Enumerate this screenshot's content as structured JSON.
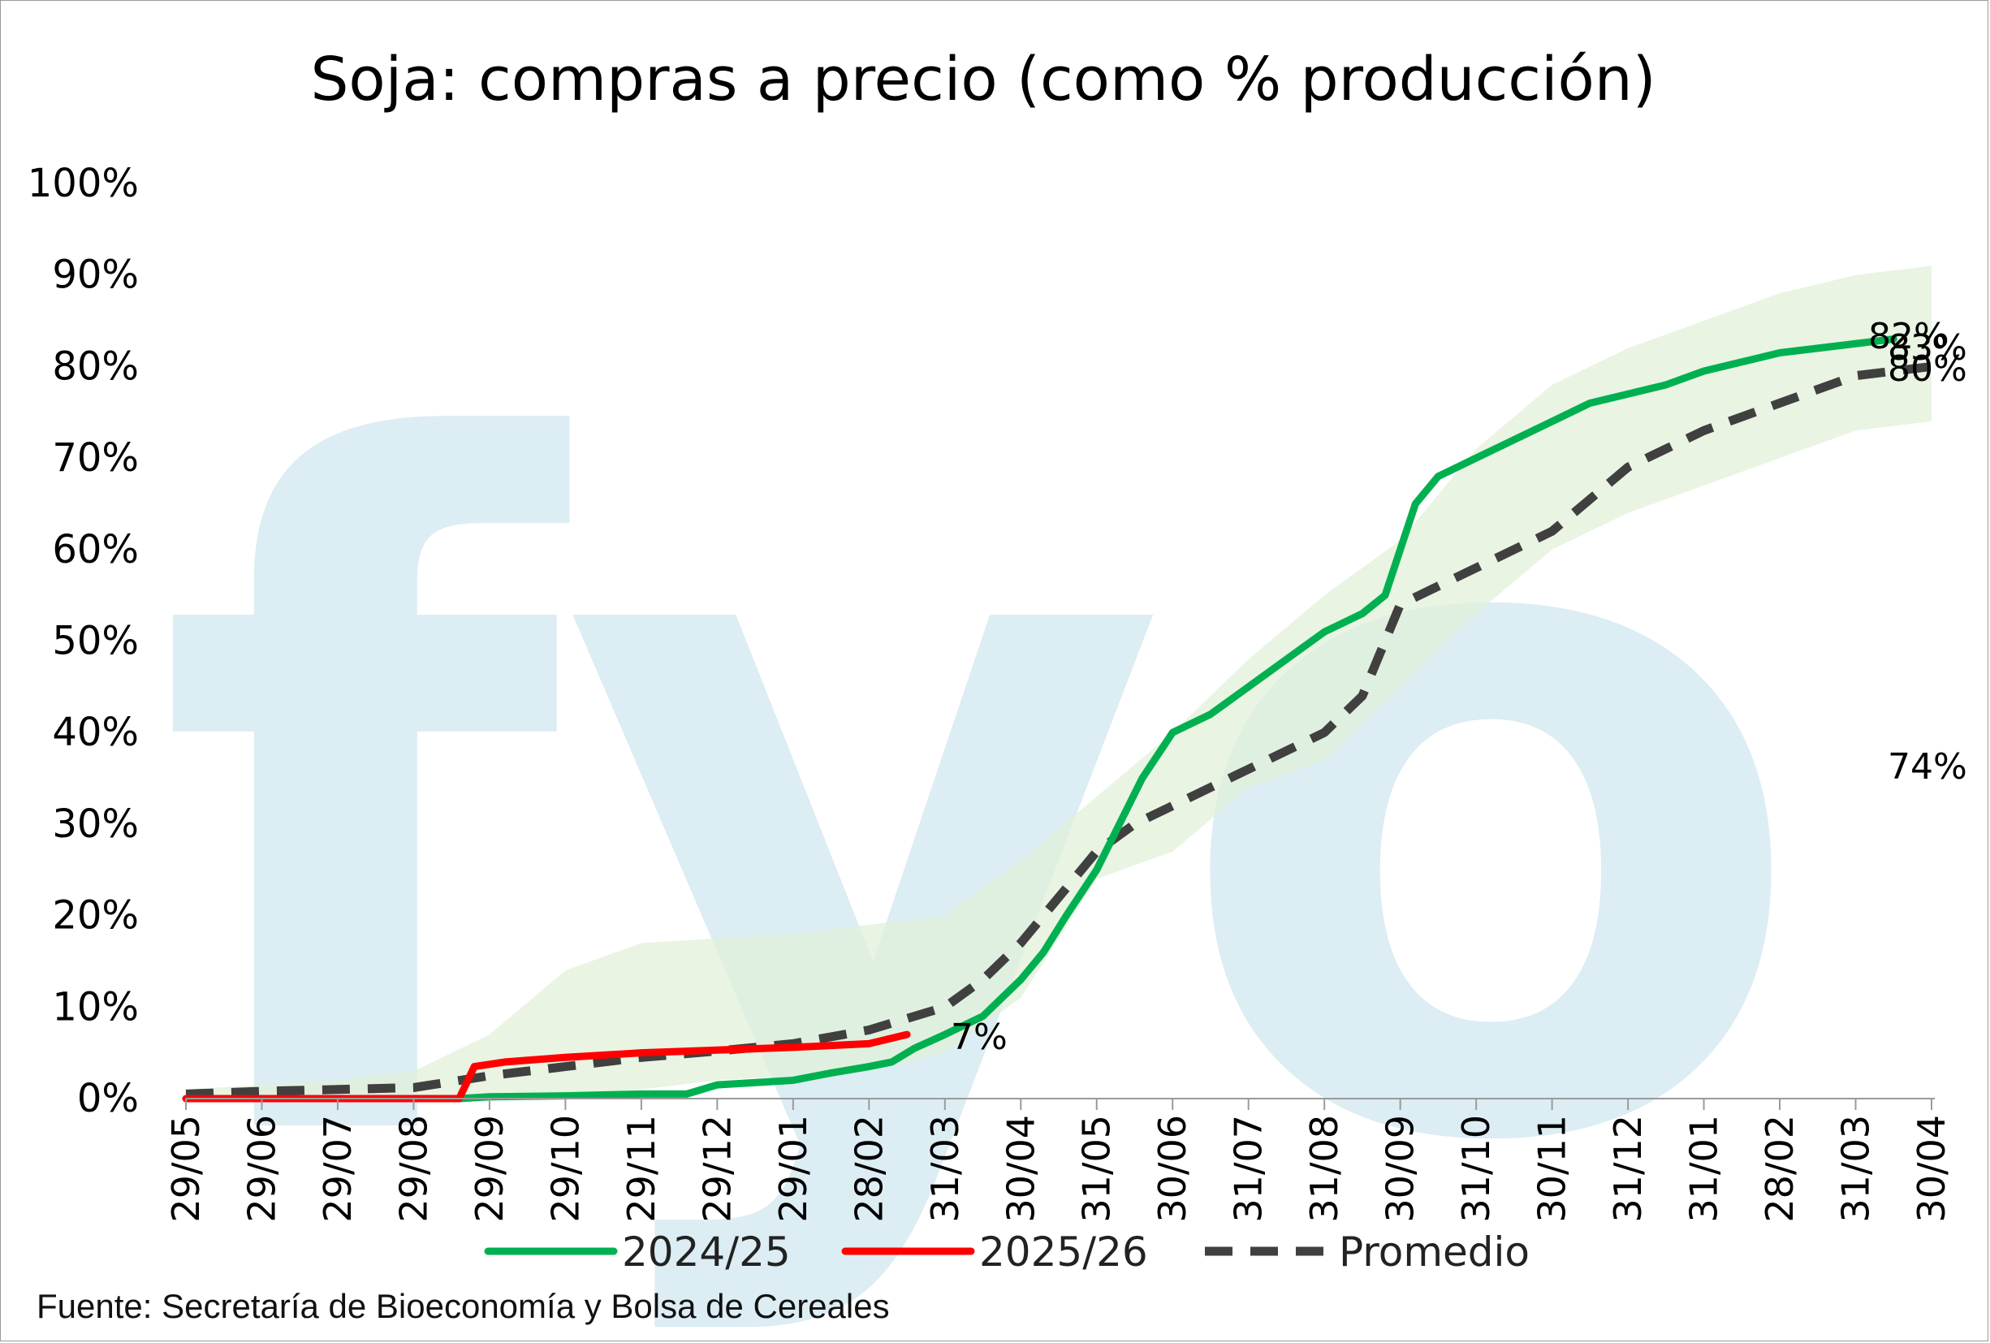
{
  "title": "Soja: compras a precio (como % producción)",
  "source": "Fuente: Secretaría de Bioeconomía y Bolsa de Cereales",
  "watermark": "fyo",
  "colors": {
    "series_2024_25": "#00b050",
    "series_2025_26": "#ff0000",
    "promedio": "#404040",
    "band": "#e2f0d9",
    "watermark": "#dcedf3"
  },
  "chart_data": {
    "type": "line",
    "title": "Soja: compras a precio (como % producción)",
    "x_labels": [
      "29/05",
      "29/06",
      "29/07",
      "29/08",
      "29/09",
      "29/10",
      "29/11",
      "29/12",
      "29/01",
      "28/02",
      "31/03",
      "30/04",
      "31/05",
      "30/06",
      "31/07",
      "31/08",
      "30/09",
      "31/10",
      "30/11",
      "31/12",
      "31/01",
      "28/02",
      "31/03",
      "30/04"
    ],
    "ylim": [
      0,
      100
    ],
    "y_ticks": [
      "0%",
      "10%",
      "20%",
      "30%",
      "40%",
      "50%",
      "60%",
      "70%",
      "80%",
      "90%",
      "100%"
    ],
    "legend_position": "bottom",
    "series": [
      {
        "name": "2024/25",
        "color": "#00b050",
        "dash": false,
        "x": [
          0,
          1,
          2,
          3,
          3.6,
          4,
          5,
          6,
          6.6,
          7,
          8,
          8.5,
          9,
          9.3,
          9.6,
          10,
          10.5,
          11,
          11.3,
          11.6,
          12,
          12.3,
          12.6,
          13,
          13.5,
          14,
          14.5,
          15,
          15.5,
          15.8,
          16,
          16.2,
          16.5,
          17,
          17.5,
          18,
          18.5,
          19,
          19.5,
          20,
          20.5,
          21,
          21.5,
          22,
          22.5
        ],
        "y": [
          0,
          0,
          0,
          0,
          0,
          0.2,
          0.3,
          0.5,
          0.5,
          1.5,
          2,
          2.8,
          3.5,
          4,
          5.5,
          7,
          9,
          13,
          16,
          20,
          25,
          30,
          35,
          40,
          42,
          45,
          48,
          51,
          53,
          55,
          60,
          65,
          68,
          70,
          72,
          74,
          76,
          77,
          78,
          79.5,
          80.5,
          81.5,
          82,
          82.5,
          83
        ]
      },
      {
        "name": "2025/26",
        "color": "#ff0000",
        "dash": false,
        "x": [
          0,
          1,
          2,
          3,
          3.6,
          3.8,
          4.2,
          5,
          6,
          7,
          8,
          9,
          9.5
        ],
        "y": [
          0,
          0,
          0,
          0,
          0,
          3.5,
          4,
          4.5,
          5,
          5.3,
          5.6,
          6,
          7
        ]
      },
      {
        "name": "Promedio",
        "color": "#404040",
        "dash": true,
        "x": [
          0,
          1,
          2,
          3,
          4,
          5,
          6,
          7,
          8,
          9,
          10,
          10.5,
          11,
          11.5,
          12,
          12.5,
          13,
          14,
          15,
          15.5,
          16,
          16.5,
          17,
          18,
          19,
          20,
          21,
          22,
          23
        ],
        "y": [
          0.5,
          0.8,
          1,
          1.2,
          2.5,
          3.5,
          4.5,
          5.2,
          6,
          7.5,
          10,
          13,
          17,
          22,
          27,
          30,
          32,
          36,
          40,
          44,
          54,
          56,
          58,
          62,
          69,
          73,
          76,
          79,
          80
        ]
      }
    ],
    "band": {
      "x": [
        0,
        1,
        2,
        3,
        4,
        5,
        6,
        7,
        8,
        9,
        10,
        11,
        12,
        13,
        14,
        15,
        16,
        17,
        18,
        19,
        20,
        21,
        22,
        23
      ],
      "upper": [
        1,
        1.5,
        2,
        3,
        7,
        14,
        17,
        17.5,
        18,
        19,
        20,
        26,
        33,
        40,
        48,
        55,
        61,
        71,
        78,
        82,
        85,
        88,
        90,
        91
      ],
      "lower": [
        0,
        0,
        0,
        0,
        0,
        0.5,
        1,
        2,
        2.5,
        3,
        5,
        11,
        24,
        27,
        34,
        37,
        45,
        53,
        60,
        64,
        67,
        70,
        73,
        74
      ]
    },
    "end_labels": [
      "82%",
      "83%",
      "80%",
      "74%",
      "7%"
    ]
  }
}
